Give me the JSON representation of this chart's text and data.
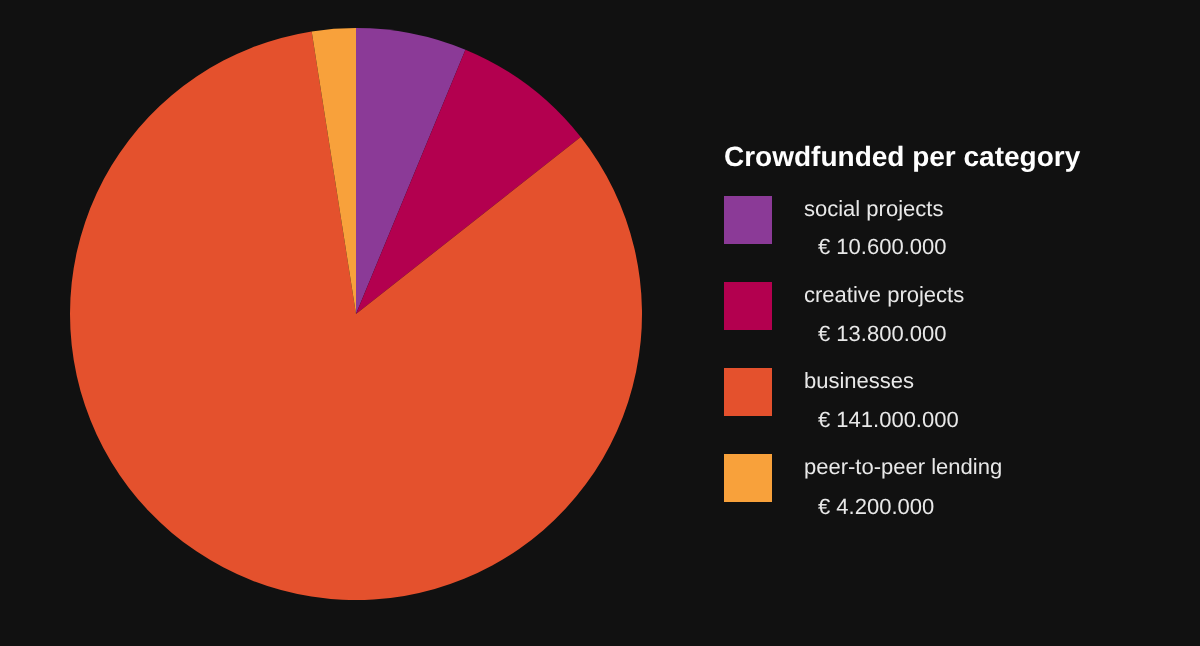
{
  "chart_data": {
    "type": "pie",
    "legend_title": "Crowdfunded per category",
    "categories": [
      "social projects",
      "creative projects",
      "businesses",
      "peer-to-peer lending"
    ],
    "values": [
      10600000,
      13800000,
      141000000,
      4200000
    ],
    "value_labels": [
      "€ 10.600.000",
      "€ 13.800.000",
      "€ 141.000.000",
      "€ 4.200.000"
    ],
    "colors": [
      "#8b3a97",
      "#b3004f",
      "#e4512d",
      "#f8a13b"
    ],
    "legend": "right"
  }
}
